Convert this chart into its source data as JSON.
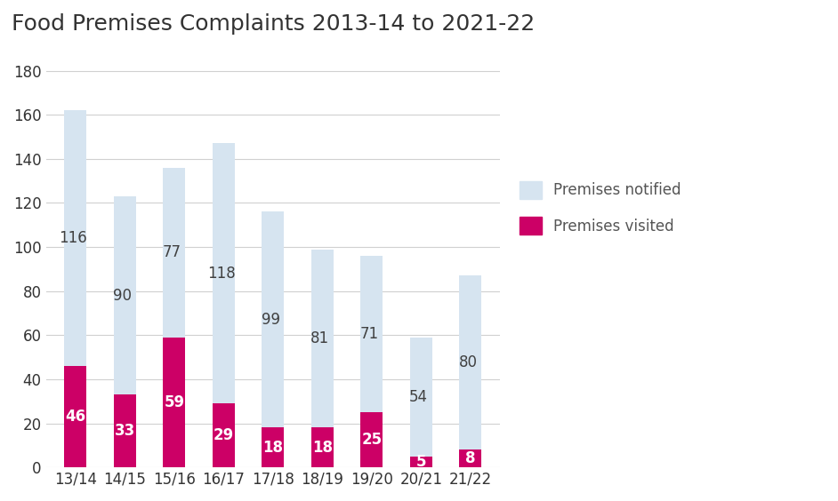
{
  "title": "Food Premises Complaints 2013-14 to 2021-22",
  "categories": [
    "13/14",
    "14/15",
    "15/16",
    "16/17",
    "17/18",
    "18/19",
    "19/20",
    "20/21",
    "21/22"
  ],
  "premises_notified": [
    162,
    123,
    136,
    147,
    116,
    99,
    96,
    59,
    87
  ],
  "premises_visited": [
    46,
    33,
    59,
    29,
    18,
    18,
    25,
    5,
    8
  ],
  "notified_labels": [
    116,
    90,
    77,
    118,
    99,
    81,
    71,
    54,
    80
  ],
  "visited_labels": [
    46,
    33,
    59,
    29,
    18,
    18,
    25,
    5,
    8
  ],
  "color_notified": "#d6e4f0",
  "color_visited": "#cc0066",
  "ylim": [
    0,
    190
  ],
  "yticks": [
    0,
    20,
    40,
    60,
    80,
    100,
    120,
    140,
    160,
    180
  ],
  "title_fontsize": 18,
  "tick_fontsize": 12,
  "label_fontsize": 12,
  "legend_fontsize": 12,
  "background_color": "#ffffff",
  "grid_color": "#d0d0d0",
  "bar_width": 0.45
}
